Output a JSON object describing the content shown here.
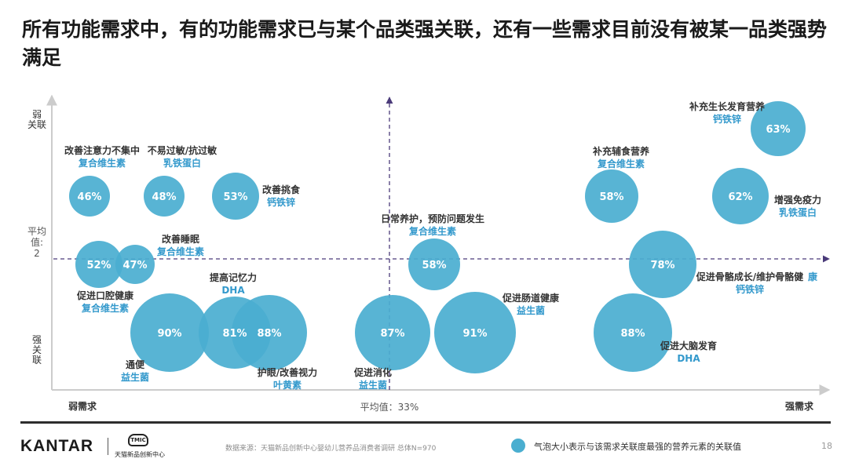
{
  "title": "所有功能需求中，有的功能需求已与某个品类强关联，还有一些需求目前没有被某一品类强势满足",
  "chart_data": {
    "type": "bubble",
    "x_axis_left_label": "弱需求",
    "x_axis_right_label": "强需求",
    "x_mean_label": "平均值：33%",
    "y_axis_top_label": "弱关联",
    "y_axis_bottom_label": "强关联",
    "y_mean_label": "平均值:2",
    "bubble_color": "#4aaed0",
    "label_category_color": "#3399cc",
    "mean_line_color": "#4b3b7a",
    "bubbles": [
      {
        "value": "46%",
        "need": "改善注意力不集中",
        "category": "复合维生素"
      },
      {
        "value": "48%",
        "need": "不易过敏/抗过敏",
        "category": "乳铁蛋白"
      },
      {
        "value": "53%",
        "need": "改善挑食",
        "category": "钙铁锌"
      },
      {
        "value": "52%",
        "need": "促进口腔健康",
        "category": "复合维生素"
      },
      {
        "value": "47%",
        "need": "改善睡眠",
        "category": "复合维生素"
      },
      {
        "value": "90%",
        "need": "通便",
        "category": "益生菌"
      },
      {
        "value": "81%",
        "need": "提高记忆力",
        "category": "DHA"
      },
      {
        "value": "88%",
        "need": "护眼/改善视力",
        "category": "叶黄素"
      },
      {
        "value": "58%",
        "need": "日常养护，预防问题发生",
        "category": "复合维生素"
      },
      {
        "value": "87%",
        "need": "促进消化",
        "category": "益生菌"
      },
      {
        "value": "91%",
        "need": "促进肠道健康",
        "category": "益生菌"
      },
      {
        "value": "63%",
        "need": "补充生长发育营养",
        "category": "钙铁锌"
      },
      {
        "value": "58%",
        "need": "补充辅食营养",
        "category": "复合维生素"
      },
      {
        "value": "62%",
        "need": "增强免疫力",
        "category": "乳铁蛋白"
      },
      {
        "value": "78%",
        "need": "促进骨骼成长/维护骨骼健康",
        "category": "钙铁锌"
      },
      {
        "value": "88%",
        "need": "促进大脑发育",
        "category": "DHA"
      }
    ]
  },
  "footer": {
    "brand": "KANTAR",
    "partner_logo_text": "TMIC",
    "partner_name": "天猫新品创新中心",
    "source": "数据来源：天猫新品创新中心婴幼儿营养品消费者调研  总体N=970",
    "legend_text": "气泡大小表示与该需求关联度最强的营养元素的关联值",
    "page_number": "18"
  }
}
